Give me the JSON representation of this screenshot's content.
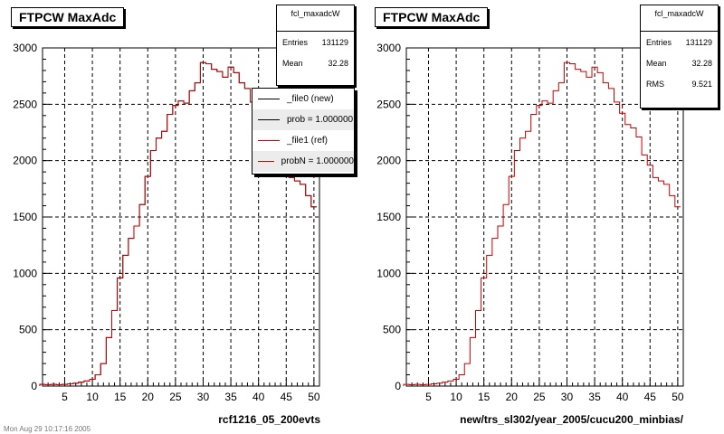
{
  "panels": [
    {
      "title": "FTPCW MaxAdc",
      "stats": {
        "name": "fcl_maxadcW",
        "rows": [
          [
            "Entries",
            "131129"
          ],
          [
            "Mean",
            "32.28"
          ]
        ]
      },
      "legend": [
        "_file0 (new)",
        "prob = 1.000000",
        "_file1 (ref)",
        "probN = 1.000000"
      ],
      "xlabel": "rcf1216_05_200evts"
    },
    {
      "title": "FTPCW MaxAdc",
      "stats": {
        "name": "fcl_maxadcW",
        "rows": [
          [
            "Entries",
            "131129"
          ],
          [
            "Mean",
            "32.28"
          ],
          [
            "RMS",
            "9.521"
          ]
        ]
      },
      "xlabel": "new/trs_sl302/year_2005/cucu200_minbias/"
    }
  ],
  "timestamp": "Mon Aug 29 10:17:16 2005",
  "colors": {
    "file0": "#000000",
    "file1": "#cc0000"
  },
  "chart_data": [
    {
      "type": "line",
      "title": "FTPCW MaxAdc",
      "xlabel": "rcf1216_05_200evts",
      "ylabel": "",
      "xlim": [
        1,
        51
      ],
      "ylim": [
        0,
        3000
      ],
      "xticks": [
        5,
        10,
        15,
        20,
        25,
        30,
        35,
        40,
        45,
        50
      ],
      "yticks": [
        0,
        500,
        1000,
        1500,
        2000,
        2500,
        3000
      ],
      "grid": true,
      "legend_position": "top-right",
      "series": [
        {
          "name": "_file0 (new)",
          "color": "#000000",
          "x": [
            1,
            2,
            3,
            4,
            5,
            6,
            7,
            8,
            9,
            10,
            11,
            12,
            13,
            14,
            15,
            16,
            17,
            18,
            19,
            20,
            21,
            22,
            23,
            24,
            25,
            26,
            27,
            28,
            29,
            30,
            31,
            32,
            33,
            34,
            35,
            36,
            37,
            38,
            39,
            40,
            41,
            42,
            43,
            44,
            45,
            46,
            47,
            48,
            49,
            50
          ],
          "values": [
            15,
            12,
            15,
            12,
            15,
            20,
            25,
            35,
            45,
            60,
            100,
            200,
            430,
            670,
            960,
            1160,
            1310,
            1420,
            1610,
            1860,
            2090,
            2200,
            2260,
            2410,
            2490,
            2530,
            2510,
            2620,
            2690,
            2870,
            2860,
            2810,
            2790,
            2740,
            2830,
            2780,
            2690,
            2640,
            2520,
            2420,
            2320,
            2290,
            2210,
            2050,
            1960,
            1850,
            1820,
            1790,
            1690,
            1590
          ]
        },
        {
          "name": "_file1 (ref)",
          "color": "#cc0000",
          "x": [
            1,
            2,
            3,
            4,
            5,
            6,
            7,
            8,
            9,
            10,
            11,
            12,
            13,
            14,
            15,
            16,
            17,
            18,
            19,
            20,
            21,
            22,
            23,
            24,
            25,
            26,
            27,
            28,
            29,
            30,
            31,
            32,
            33,
            34,
            35,
            36,
            37,
            38,
            39,
            40,
            41,
            42,
            43,
            44,
            45,
            46,
            47,
            48,
            49,
            50
          ],
          "values": [
            15,
            12,
            15,
            12,
            15,
            20,
            25,
            35,
            45,
            60,
            100,
            200,
            430,
            670,
            960,
            1160,
            1310,
            1420,
            1610,
            1860,
            2090,
            2200,
            2260,
            2410,
            2490,
            2530,
            2510,
            2620,
            2690,
            2870,
            2860,
            2810,
            2790,
            2740,
            2830,
            2780,
            2690,
            2640,
            2520,
            2420,
            2320,
            2290,
            2210,
            2050,
            1960,
            1850,
            1820,
            1790,
            1690,
            1590
          ]
        }
      ]
    },
    {
      "type": "line",
      "title": "FTPCW MaxAdc",
      "xlabel": "new/trs_sl302/year_2005/cucu200_minbias/",
      "ylabel": "",
      "xlim": [
        1,
        51
      ],
      "ylim": [
        0,
        3000
      ],
      "xticks": [
        5,
        10,
        15,
        20,
        25,
        30,
        35,
        40,
        45,
        50
      ],
      "yticks": [
        0,
        500,
        1000,
        1500,
        2000,
        2500,
        3000
      ],
      "grid": true,
      "series": [
        {
          "color": "#cc0000",
          "x": [
            1,
            2,
            3,
            4,
            5,
            6,
            7,
            8,
            9,
            10,
            11,
            12,
            13,
            14,
            15,
            16,
            17,
            18,
            19,
            20,
            21,
            22,
            23,
            24,
            25,
            26,
            27,
            28,
            29,
            30,
            31,
            32,
            33,
            34,
            35,
            36,
            37,
            38,
            39,
            40,
            41,
            42,
            43,
            44,
            45,
            46,
            47,
            48,
            49,
            50
          ],
          "values": [
            15,
            12,
            15,
            12,
            15,
            20,
            25,
            35,
            45,
            60,
            100,
            200,
            430,
            670,
            960,
            1160,
            1310,
            1420,
            1610,
            1860,
            2090,
            2200,
            2260,
            2410,
            2490,
            2530,
            2510,
            2620,
            2690,
            2870,
            2860,
            2810,
            2790,
            2740,
            2830,
            2780,
            2690,
            2640,
            2520,
            2420,
            2320,
            2290,
            2210,
            2050,
            1960,
            1850,
            1820,
            1790,
            1690,
            1590
          ]
        }
      ]
    }
  ]
}
